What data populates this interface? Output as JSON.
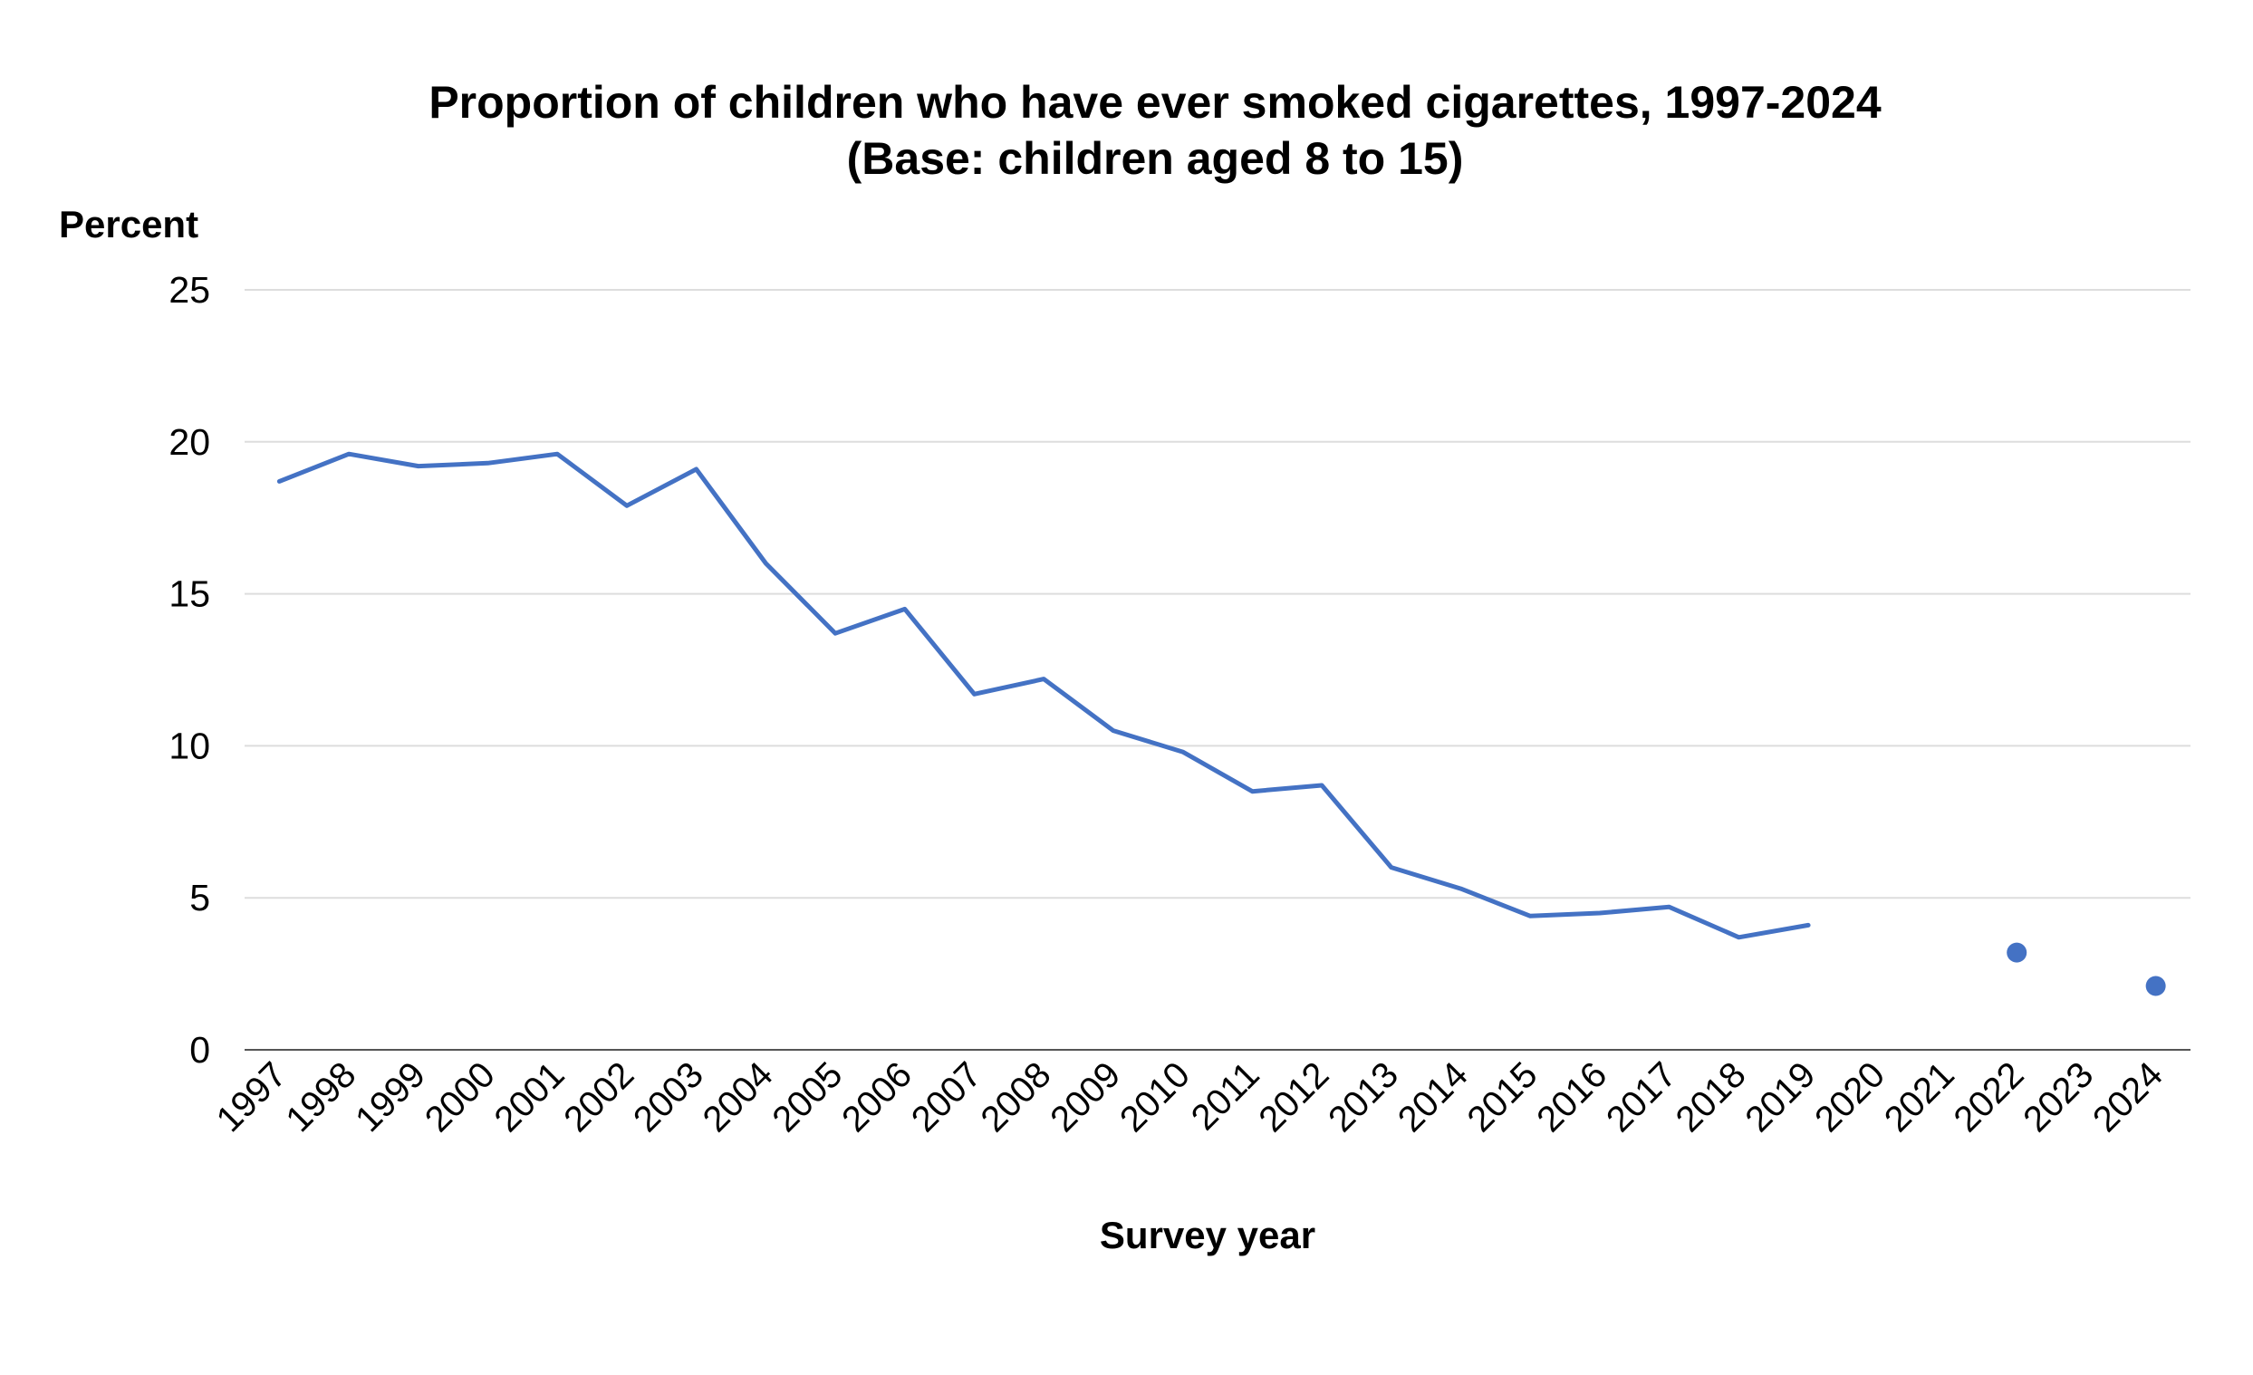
{
  "chart_data": {
    "type": "line",
    "title": "Proportion of children who have ever smoked cigarettes, 1997-2024",
    "subtitle": "(Base: children aged 8 to 15)",
    "xlabel": "Survey year",
    "ylabel": "Percent",
    "ylim": [
      0,
      25
    ],
    "yticks": [
      "0",
      "5",
      "10",
      "15",
      "20",
      "25"
    ],
    "categories": [
      "1997",
      "1998",
      "1999",
      "2000",
      "2001",
      "2002",
      "2003",
      "2004",
      "2005",
      "2006",
      "2007",
      "2008",
      "2009",
      "2010",
      "2011",
      "2012",
      "2013",
      "2014",
      "2015",
      "2016",
      "2017",
      "2018",
      "2019",
      "2020",
      "2021",
      "2022",
      "2023",
      "2024"
    ],
    "series": [
      {
        "color": "#4472C4",
        "values": [
          18.7,
          19.6,
          19.2,
          19.3,
          19.6,
          17.9,
          19.1,
          16.0,
          13.7,
          14.5,
          11.7,
          12.2,
          10.5,
          9.8,
          8.5,
          8.7,
          6.0,
          5.3,
          4.4,
          4.5,
          4.7,
          3.7,
          4.1,
          null,
          null,
          3.2,
          null,
          2.1
        ]
      }
    ],
    "grid": true,
    "legend": "none"
  }
}
